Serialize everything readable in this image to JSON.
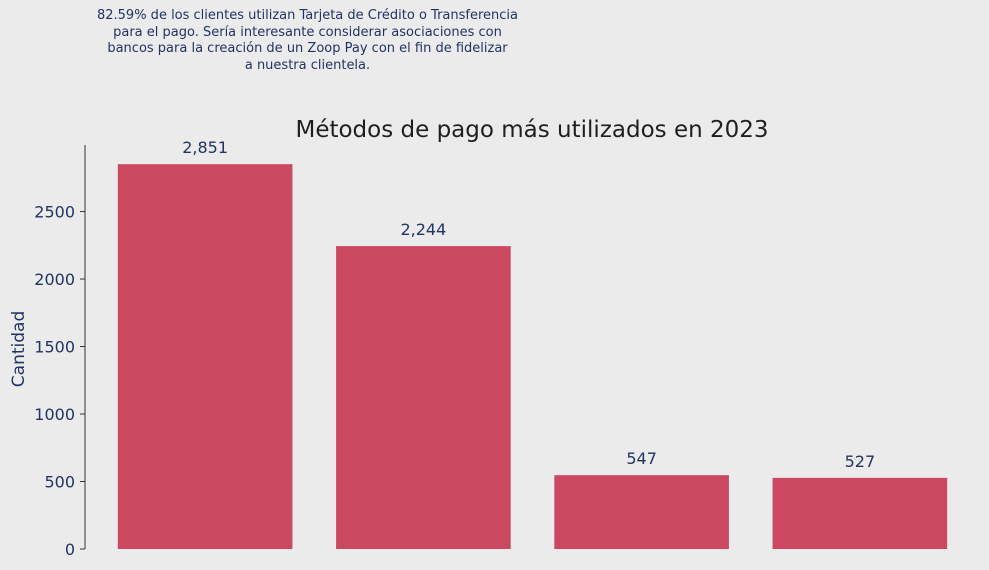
{
  "chart_data": {
    "type": "bar",
    "title": "Métodos de pago más utilizados en 2023",
    "annotation": "82.59% de los clientes utilizan Tarjeta de Crédito o Transferencia\npara el pago. Sería interesante considerar asociaciones con\nbancos para la creación de un Zoop Pay con el fin de fidelizar\na nuestra clientela.",
    "ylabel": "Cantidad",
    "xlabel": "",
    "categories": [
      "",
      "",
      "",
      ""
    ],
    "values": [
      2851,
      2244,
      547,
      527
    ],
    "value_labels": [
      "2,851",
      "2,244",
      "547",
      "527"
    ],
    "y_ticks": [
      0,
      500,
      1000,
      1500,
      2000,
      2500
    ],
    "ylim": [
      0,
      2993
    ],
    "grid": false,
    "colors": {
      "bar": "#cc4861",
      "text": "#1f3464",
      "title": "#1f1f1f",
      "axis": "#333333",
      "background": "#ebebeb"
    }
  }
}
